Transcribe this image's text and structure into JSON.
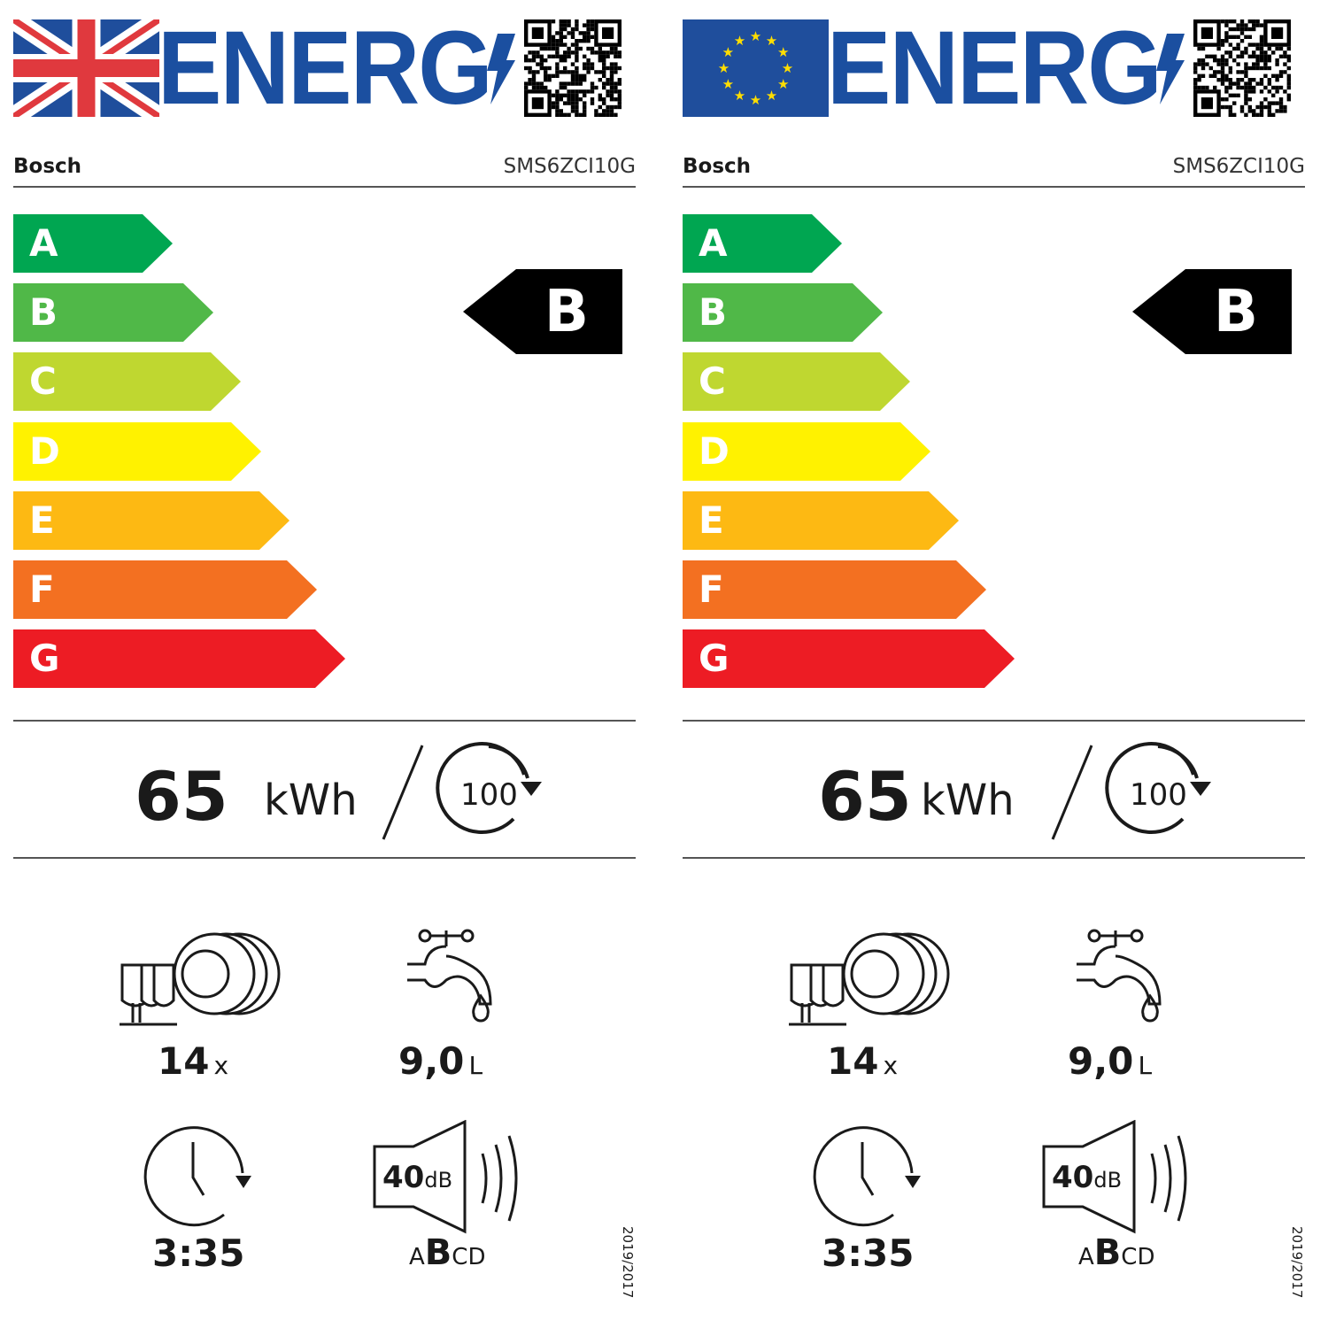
{
  "labels": [
    {
      "region": "UK",
      "flag_icon": "union-jack-flag",
      "title": "ENERG",
      "brand": "Bosch",
      "model": "SMS6ZCI10G",
      "scale": [
        {
          "letter": "A",
          "color": "#00a651"
        },
        {
          "letter": "B",
          "color": "#50b848"
        },
        {
          "letter": "C",
          "color": "#bfd730"
        },
        {
          "letter": "D",
          "color": "#fff200"
        },
        {
          "letter": "E",
          "color": "#fdb913"
        },
        {
          "letter": "F",
          "color": "#f37021"
        },
        {
          "letter": "G",
          "color": "#ed1c24"
        }
      ],
      "rating": "B",
      "energy_value": "65",
      "energy_unit": "kWh",
      "cycles": "100",
      "capacity_value": "14",
      "capacity_unit": "x",
      "water_value": "9,0",
      "water_unit": "L",
      "duration": "3:35",
      "noise_value": "40",
      "noise_unit": "dB",
      "noise_classes": [
        "A",
        "B",
        "C",
        "D"
      ],
      "noise_class": "B",
      "regulation": "2019/2017"
    },
    {
      "region": "EU",
      "flag_icon": "eu-flag",
      "title": "ENERG",
      "brand": "Bosch",
      "model": "SMS6ZCI10G",
      "scale": [
        {
          "letter": "A",
          "color": "#00a651"
        },
        {
          "letter": "B",
          "color": "#50b848"
        },
        {
          "letter": "C",
          "color": "#bfd730"
        },
        {
          "letter": "D",
          "color": "#fff200"
        },
        {
          "letter": "E",
          "color": "#fdb913"
        },
        {
          "letter": "F",
          "color": "#f37021"
        },
        {
          "letter": "G",
          "color": "#ed1c24"
        }
      ],
      "rating": "B",
      "energy_value": "65",
      "energy_unit": "kWh",
      "cycles": "100",
      "capacity_value": "14",
      "capacity_unit": "x",
      "water_value": "9,0",
      "water_unit": "L",
      "duration": "3:35",
      "noise_value": "40",
      "noise_unit": "dB",
      "noise_classes": [
        "A",
        "B",
        "C",
        "D"
      ],
      "noise_class": "B",
      "regulation": "2019/2017"
    }
  ]
}
